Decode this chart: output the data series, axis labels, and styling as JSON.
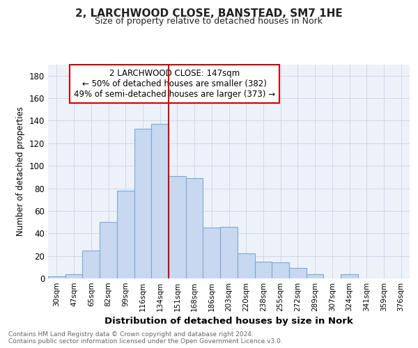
{
  "title1": "2, LARCHWOOD CLOSE, BANSTEAD, SM7 1HE",
  "title2": "Size of property relative to detached houses in Nork",
  "xlabel": "Distribution of detached houses by size in Nork",
  "ylabel": "Number of detached properties",
  "categories": [
    "30sqm",
    "47sqm",
    "65sqm",
    "82sqm",
    "99sqm",
    "116sqm",
    "134sqm",
    "151sqm",
    "168sqm",
    "186sqm",
    "203sqm",
    "220sqm",
    "238sqm",
    "255sqm",
    "272sqm",
    "289sqm",
    "307sqm",
    "324sqm",
    "341sqm",
    "359sqm",
    "376sqm"
  ],
  "values": [
    2,
    4,
    25,
    50,
    78,
    133,
    137,
    91,
    89,
    45,
    46,
    22,
    15,
    14,
    9,
    4,
    0,
    4,
    0,
    0,
    0
  ],
  "bar_color": "#c8d8f0",
  "bar_edge_color": "#7aaad0",
  "vline_color": "#cc0000",
  "annotation_text": "2 LARCHWOOD CLOSE: 147sqm\n← 50% of detached houses are smaller (382)\n49% of semi-detached houses are larger (373) →",
  "annotation_box_color": "#ffffff",
  "annotation_box_edge": "#cc0000",
  "footer_text": "Contains HM Land Registry data © Crown copyright and database right 2024.\nContains public sector information licensed under the Open Government Licence v3.0.",
  "ylim": [
    0,
    190
  ],
  "yticks": [
    0,
    20,
    40,
    60,
    80,
    100,
    120,
    140,
    160,
    180
  ],
  "grid_color": "#ccd8ea",
  "bg_color": "#edf2fa"
}
